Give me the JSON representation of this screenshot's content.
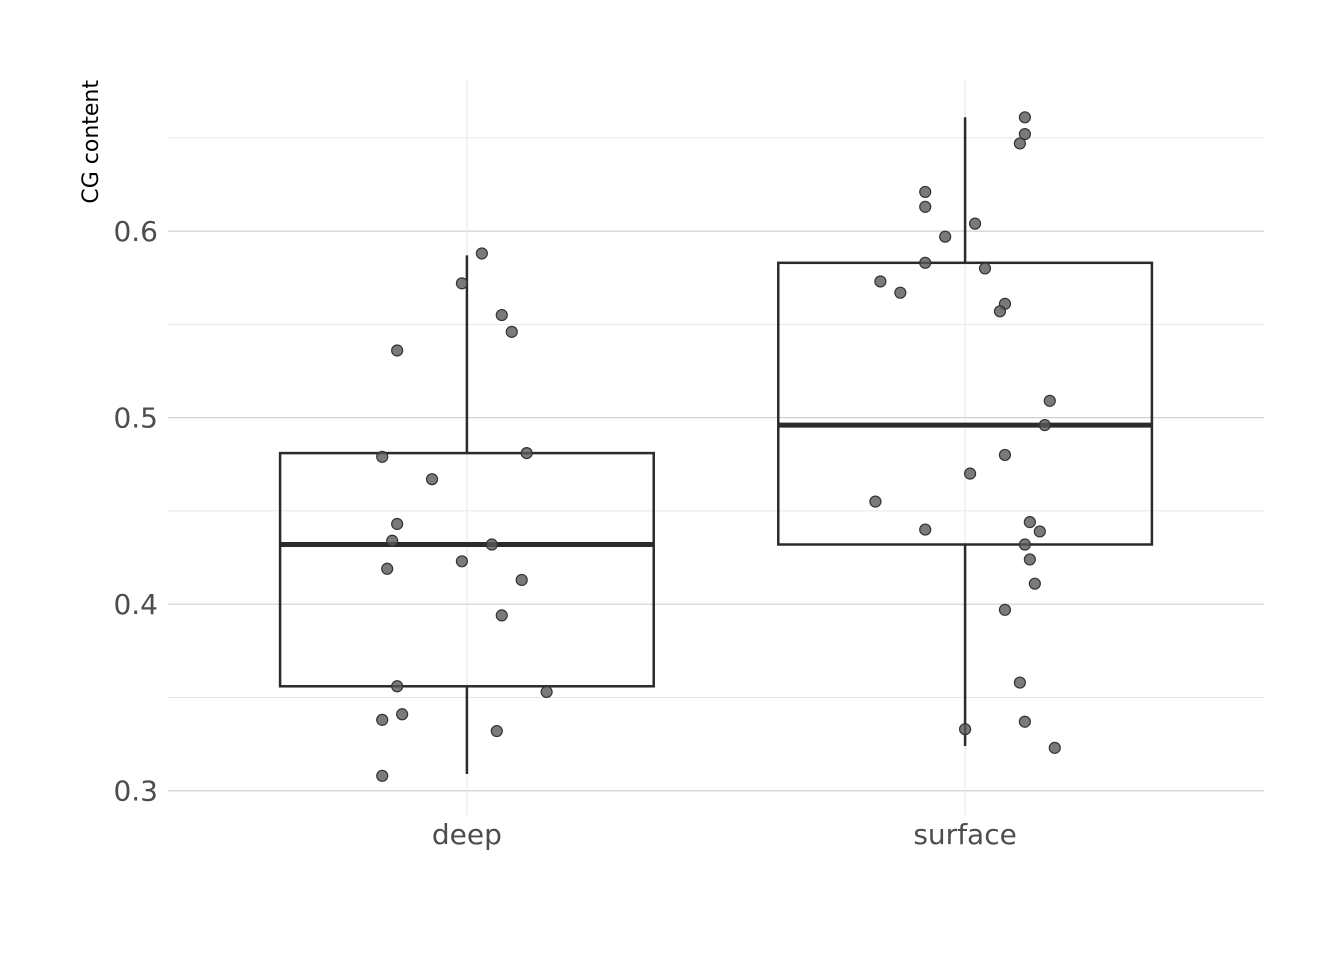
{
  "chart_data": {
    "type": "box",
    "ylabel": "CG content",
    "xlabel": "",
    "ylim": [
      0.287,
      0.681
    ],
    "yticks": [
      0.3,
      0.4,
      0.5,
      0.6
    ],
    "ytick_labels": [
      "0.3",
      "0.4",
      "0.5",
      "0.6"
    ],
    "categories": [
      "deep",
      "surface"
    ],
    "grid": true,
    "legend": "none",
    "boxes": [
      {
        "category": "deep",
        "q1": 0.356,
        "median": 0.432,
        "q3": 0.481,
        "whisker_low": 0.309,
        "whisker_high": 0.587
      },
      {
        "category": "surface",
        "q1": 0.432,
        "median": 0.496,
        "q3": 0.583,
        "whisker_low": 0.324,
        "whisker_high": 0.661
      }
    ],
    "points": [
      {
        "category": "deep",
        "jitter": 0.03,
        "y": 0.588
      },
      {
        "category": "deep",
        "jitter": -0.01,
        "y": 0.572
      },
      {
        "category": "deep",
        "jitter": 0.07,
        "y": 0.555
      },
      {
        "category": "deep",
        "jitter": 0.09,
        "y": 0.546
      },
      {
        "category": "deep",
        "jitter": -0.14,
        "y": 0.536
      },
      {
        "category": "deep",
        "jitter": 0.12,
        "y": 0.481
      },
      {
        "category": "deep",
        "jitter": -0.17,
        "y": 0.479
      },
      {
        "category": "deep",
        "jitter": -0.07,
        "y": 0.467
      },
      {
        "category": "deep",
        "jitter": -0.14,
        "y": 0.443
      },
      {
        "category": "deep",
        "jitter": -0.15,
        "y": 0.434
      },
      {
        "category": "deep",
        "jitter": 0.05,
        "y": 0.432
      },
      {
        "category": "deep",
        "jitter": -0.01,
        "y": 0.423
      },
      {
        "category": "deep",
        "jitter": -0.16,
        "y": 0.419
      },
      {
        "category": "deep",
        "jitter": 0.11,
        "y": 0.413
      },
      {
        "category": "deep",
        "jitter": 0.07,
        "y": 0.394
      },
      {
        "category": "deep",
        "jitter": -0.14,
        "y": 0.356
      },
      {
        "category": "deep",
        "jitter": 0.16,
        "y": 0.353
      },
      {
        "category": "deep",
        "jitter": -0.13,
        "y": 0.341
      },
      {
        "category": "deep",
        "jitter": -0.17,
        "y": 0.338
      },
      {
        "category": "deep",
        "jitter": 0.06,
        "y": 0.332
      },
      {
        "category": "deep",
        "jitter": -0.17,
        "y": 0.308
      },
      {
        "category": "surface",
        "jitter": 0.12,
        "y": 0.661
      },
      {
        "category": "surface",
        "jitter": 0.12,
        "y": 0.652
      },
      {
        "category": "surface",
        "jitter": 0.11,
        "y": 0.647
      },
      {
        "category": "surface",
        "jitter": -0.08,
        "y": 0.621
      },
      {
        "category": "surface",
        "jitter": -0.08,
        "y": 0.613
      },
      {
        "category": "surface",
        "jitter": 0.02,
        "y": 0.604
      },
      {
        "category": "surface",
        "jitter": -0.04,
        "y": 0.597
      },
      {
        "category": "surface",
        "jitter": -0.08,
        "y": 0.583
      },
      {
        "category": "surface",
        "jitter": 0.04,
        "y": 0.58
      },
      {
        "category": "surface",
        "jitter": -0.17,
        "y": 0.573
      },
      {
        "category": "surface",
        "jitter": -0.13,
        "y": 0.567
      },
      {
        "category": "surface",
        "jitter": 0.08,
        "y": 0.561
      },
      {
        "category": "surface",
        "jitter": 0.07,
        "y": 0.557
      },
      {
        "category": "surface",
        "jitter": 0.17,
        "y": 0.509
      },
      {
        "category": "surface",
        "jitter": 0.16,
        "y": 0.496
      },
      {
        "category": "surface",
        "jitter": 0.08,
        "y": 0.48
      },
      {
        "category": "surface",
        "jitter": 0.01,
        "y": 0.47
      },
      {
        "category": "surface",
        "jitter": -0.18,
        "y": 0.455
      },
      {
        "category": "surface",
        "jitter": 0.13,
        "y": 0.444
      },
      {
        "category": "surface",
        "jitter": -0.08,
        "y": 0.44
      },
      {
        "category": "surface",
        "jitter": 0.15,
        "y": 0.439
      },
      {
        "category": "surface",
        "jitter": 0.12,
        "y": 0.432
      },
      {
        "category": "surface",
        "jitter": 0.13,
        "y": 0.424
      },
      {
        "category": "surface",
        "jitter": 0.14,
        "y": 0.411
      },
      {
        "category": "surface",
        "jitter": 0.08,
        "y": 0.397
      },
      {
        "category": "surface",
        "jitter": 0.11,
        "y": 0.358
      },
      {
        "category": "surface",
        "jitter": 0.12,
        "y": 0.337
      },
      {
        "category": "surface",
        "jitter": 0.0,
        "y": 0.333
      },
      {
        "category": "surface",
        "jitter": 0.18,
        "y": 0.323
      }
    ]
  }
}
